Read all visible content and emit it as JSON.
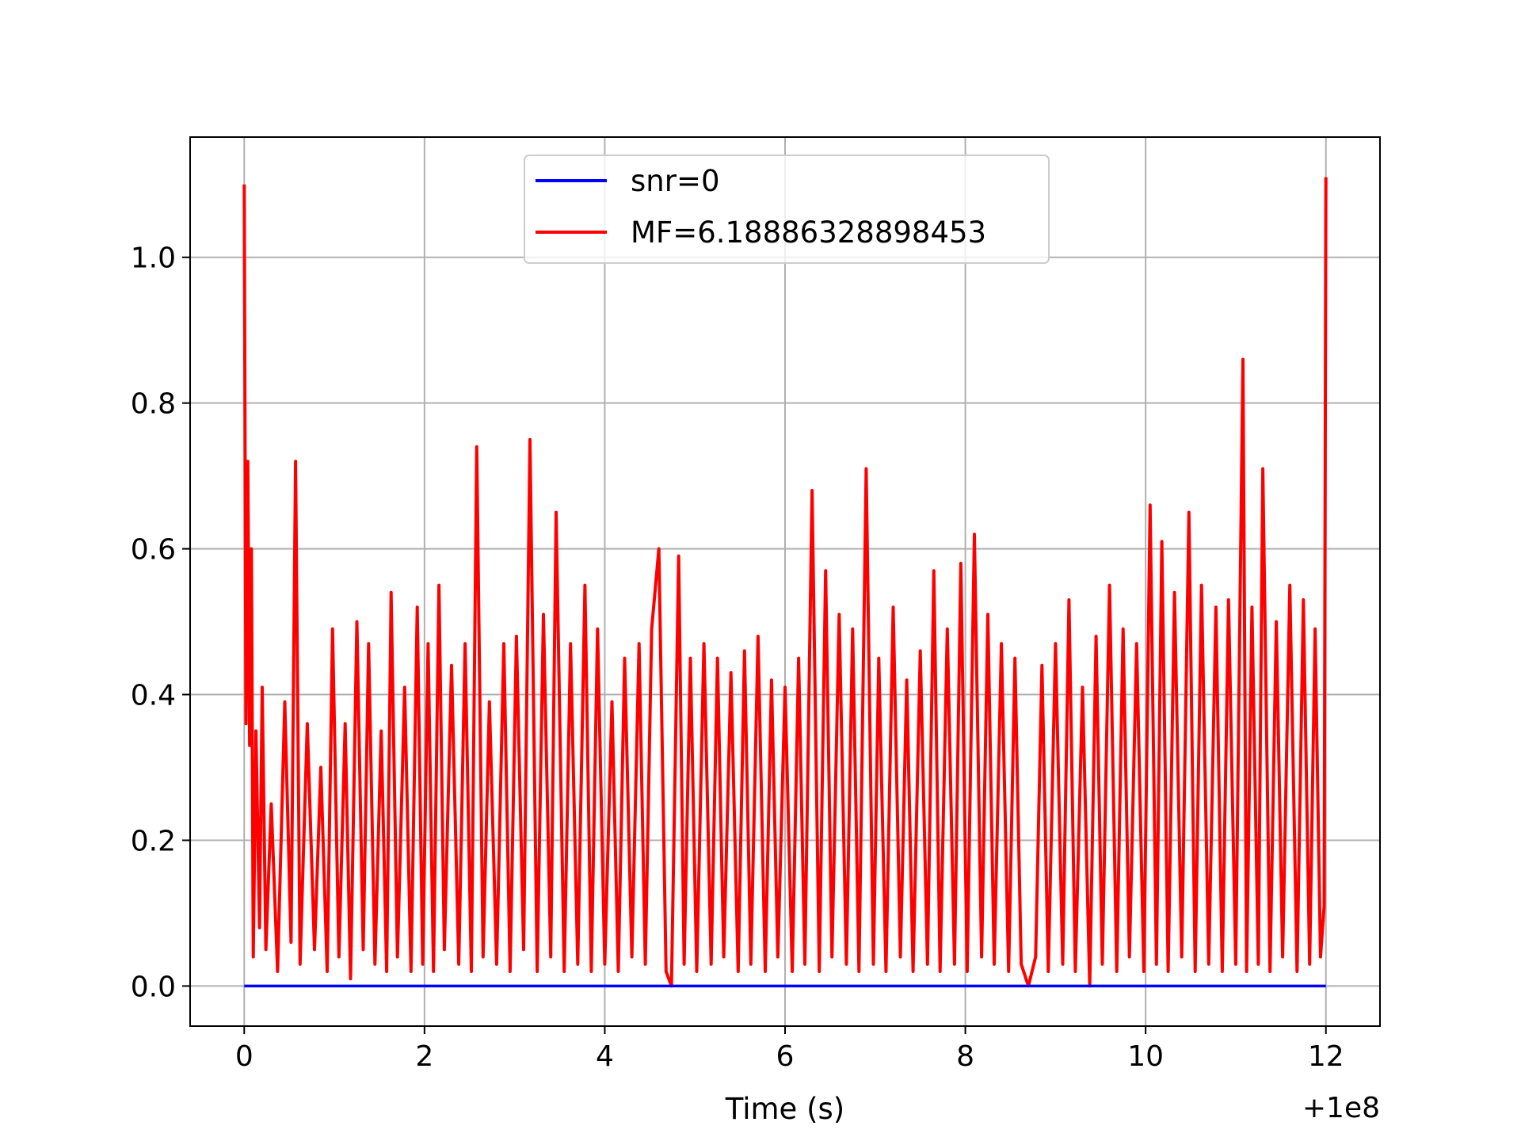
{
  "chart_data": {
    "type": "line",
    "xlabel": "Time (s)",
    "ylabel": "",
    "x_offset_label": "+1e8",
    "xlim": [
      -0.6,
      12.6
    ],
    "ylim": [
      -0.055,
      1.165
    ],
    "x_ticks": [
      0,
      2,
      4,
      6,
      8,
      10,
      12
    ],
    "x_tick_labels": [
      "0",
      "2",
      "4",
      "6",
      "8",
      "10",
      "12"
    ],
    "y_ticks": [
      0.0,
      0.2,
      0.4,
      0.6,
      0.8,
      1.0
    ],
    "y_tick_labels": [
      "0.0",
      "0.2",
      "0.4",
      "0.6",
      "0.8",
      "1.0"
    ],
    "grid": true,
    "legend_position": "top-center",
    "series": [
      {
        "name": "snr=0",
        "color": "#0000ff",
        "x": [
          0,
          12
        ],
        "y": [
          0.0,
          0.0
        ]
      },
      {
        "name": "MF=6.18886328898453",
        "color": "#ff0000",
        "x": [
          0,
          0.02,
          0.04,
          0.06,
          0.08,
          0.1,
          0.13,
          0.17,
          0.2,
          0.24,
          0.3,
          0.37,
          0.45,
          0.52,
          0.57,
          0.62,
          0.7,
          0.78,
          0.85,
          0.92,
          0.98,
          1.05,
          1.12,
          1.18,
          1.25,
          1.32,
          1.38,
          1.45,
          1.52,
          1.58,
          1.63,
          1.7,
          1.78,
          1.85,
          1.92,
          1.98,
          2.04,
          2.1,
          2.16,
          2.22,
          2.3,
          2.38,
          2.45,
          2.52,
          2.58,
          2.65,
          2.72,
          2.8,
          2.88,
          2.95,
          3.02,
          3.1,
          3.17,
          3.25,
          3.32,
          3.4,
          3.46,
          3.55,
          3.62,
          3.7,
          3.78,
          3.85,
          3.92,
          4.0,
          4.08,
          4.15,
          4.22,
          4.3,
          4.38,
          4.45,
          4.52,
          4.6,
          4.68,
          4.74,
          4.82,
          4.88,
          4.95,
          5.02,
          5.1,
          5.18,
          5.25,
          5.32,
          5.4,
          5.48,
          5.55,
          5.62,
          5.7,
          5.78,
          5.85,
          5.92,
          6.0,
          6.08,
          6.15,
          6.22,
          6.3,
          6.38,
          6.45,
          6.52,
          6.6,
          6.68,
          6.75,
          6.82,
          6.9,
          6.98,
          7.04,
          7.12,
          7.2,
          7.28,
          7.35,
          7.42,
          7.5,
          7.58,
          7.65,
          7.72,
          7.8,
          7.88,
          7.95,
          8.02,
          8.1,
          8.18,
          8.25,
          8.32,
          8.4,
          8.48,
          8.55,
          8.62,
          8.7,
          8.78,
          8.85,
          8.92,
          9.0,
          9.08,
          9.15,
          9.22,
          9.3,
          9.38,
          9.45,
          9.52,
          9.6,
          9.68,
          9.75,
          9.82,
          9.9,
          9.98,
          10.05,
          10.12,
          10.18,
          10.25,
          10.32,
          10.4,
          10.48,
          10.55,
          10.62,
          10.7,
          10.78,
          10.85,
          10.92,
          11.0,
          11.08,
          11.12,
          11.18,
          11.25,
          11.3,
          11.38,
          11.45,
          11.52,
          11.6,
          11.68,
          11.75,
          11.82,
          11.88,
          11.94,
          11.98,
          12.0
        ],
        "y": [
          1.1,
          0.36,
          0.72,
          0.33,
          0.6,
          0.04,
          0.35,
          0.08,
          0.41,
          0.05,
          0.25,
          0.02,
          0.39,
          0.06,
          0.72,
          0.03,
          0.36,
          0.05,
          0.3,
          0.02,
          0.49,
          0.04,
          0.36,
          0.01,
          0.5,
          0.05,
          0.47,
          0.03,
          0.35,
          0.02,
          0.54,
          0.04,
          0.41,
          0.02,
          0.52,
          0.03,
          0.47,
          0.02,
          0.55,
          0.05,
          0.44,
          0.03,
          0.47,
          0.02,
          0.74,
          0.04,
          0.39,
          0.03,
          0.47,
          0.02,
          0.48,
          0.05,
          0.75,
          0.02,
          0.51,
          0.04,
          0.65,
          0.02,
          0.47,
          0.03,
          0.55,
          0.02,
          0.49,
          0.03,
          0.39,
          0.02,
          0.45,
          0.04,
          0.47,
          0.03,
          0.49,
          0.6,
          0.02,
          0.0,
          0.59,
          0.03,
          0.45,
          0.02,
          0.47,
          0.03,
          0.45,
          0.04,
          0.43,
          0.02,
          0.46,
          0.03,
          0.48,
          0.02,
          0.42,
          0.04,
          0.41,
          0.02,
          0.45,
          0.03,
          0.68,
          0.02,
          0.57,
          0.04,
          0.51,
          0.03,
          0.49,
          0.02,
          0.71,
          0.03,
          0.45,
          0.02,
          0.52,
          0.04,
          0.42,
          0.02,
          0.46,
          0.03,
          0.57,
          0.02,
          0.49,
          0.03,
          0.58,
          0.02,
          0.62,
          0.04,
          0.51,
          0.03,
          0.47,
          0.02,
          0.45,
          0.03,
          0.0,
          0.04,
          0.44,
          0.02,
          0.47,
          0.03,
          0.53,
          0.02,
          0.41,
          0.0,
          0.48,
          0.03,
          0.55,
          0.02,
          0.49,
          0.04,
          0.47,
          0.02,
          0.66,
          0.03,
          0.61,
          0.02,
          0.54,
          0.04,
          0.65,
          0.02,
          0.55,
          0.03,
          0.52,
          0.02,
          0.53,
          0.03,
          0.86,
          0.02,
          0.52,
          0.03,
          0.71,
          0.02,
          0.5,
          0.04,
          0.55,
          0.02,
          0.53,
          0.03,
          0.49,
          0.04,
          0.11,
          1.11
        ]
      }
    ]
  }
}
